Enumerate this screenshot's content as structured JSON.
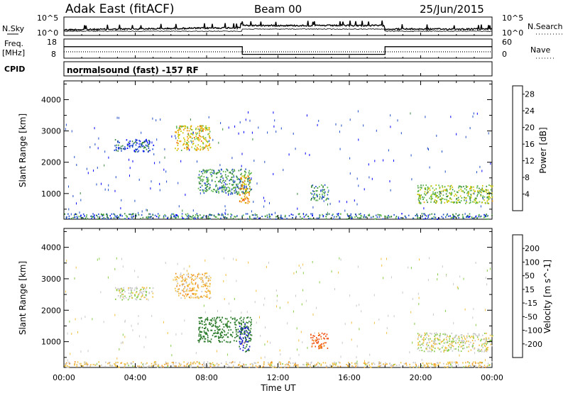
{
  "header": {
    "station": "Adak East (fitACF)",
    "beam": "Beam 00",
    "date": "25/Jun/2015"
  },
  "noise_panel": {
    "left_label": "N.Sky",
    "right_label": "N.Search",
    "left_ticks": [
      "10^5",
      "10^0"
    ],
    "right_ticks": [
      "10^5",
      "10^0"
    ]
  },
  "freq_panel": {
    "left_label": "Freq.",
    "left_unit": "[MHz]",
    "left_ticks": [
      "18",
      "8"
    ],
    "right_label": "Nave",
    "right_ticks": [
      "60",
      "0"
    ],
    "freq_steps": [
      {
        "start": 0,
        "end": 10,
        "level": 0.6
      },
      {
        "start": 10,
        "end": 18,
        "level": 0.2
      },
      {
        "start": 18,
        "end": 24,
        "level": 0.6
      }
    ]
  },
  "cpid_panel": {
    "label": "CPID",
    "text": "normalsound (fast) -157 RF"
  },
  "colors": {
    "power": [
      "#0000ff",
      "#1e4bc8",
      "#3a8a3c",
      "#5cb84a",
      "#c8c800",
      "#f2a000",
      "#f26000",
      "#e01010"
    ],
    "velocity": [
      "#1f1fd0",
      "#2a7a2a",
      "#44a844",
      "#88cc44",
      "#c8c8c8",
      "#f0c040",
      "#f09020",
      "#f05010",
      "#e01010"
    ]
  },
  "chart_data": [
    {
      "type": "heatmap",
      "title": "",
      "xlabel": "Time UT",
      "ylabel": "Slant Range [km]",
      "xlim": [
        0,
        24
      ],
      "ylim": [
        180,
        4600
      ],
      "x_ticks": [
        "00:00",
        "04:00",
        "08:00",
        "12:00",
        "16:00",
        "20:00",
        "00:00"
      ],
      "y_ticks": [
        "1000",
        "2000",
        "3000",
        "4000"
      ],
      "colorbar_label": "Power [dB]",
      "colorbar_ticks": [
        "4",
        "8",
        "12",
        "16",
        "20",
        "24",
        "28"
      ],
      "colorbar_range": [
        0,
        30
      ],
      "features": [
        {
          "name": "morning arc",
          "x_range": [
            2.8,
            5.0
          ],
          "range_km": [
            2350,
            2750
          ],
          "power": 6
        },
        {
          "name": "morning blob",
          "x_range": [
            6.2,
            8.2
          ],
          "range_km": [
            2400,
            3200
          ],
          "power": 18
        },
        {
          "name": "descending echo",
          "x_range": [
            7.5,
            10.5
          ],
          "range_km": [
            1000,
            1800
          ],
          "power": 10
        },
        {
          "name": "noon patch",
          "x_range": [
            9.8,
            10.4
          ],
          "range_km": [
            700,
            1600
          ],
          "power": 20
        },
        {
          "name": "afternoon patch",
          "x_range": [
            13.8,
            14.8
          ],
          "range_km": [
            800,
            1300
          ],
          "power": 10
        },
        {
          "name": "evening bands",
          "x_range": [
            19.8,
            24
          ],
          "range_km": [
            700,
            1300
          ],
          "power": 14
        },
        {
          "name": "near range",
          "x_range": [
            0,
            24
          ],
          "range_km": [
            180,
            380
          ],
          "power": 8
        }
      ]
    },
    {
      "type": "heatmap",
      "title": "",
      "xlabel": "Time UT",
      "ylabel": "Slant Range [km]",
      "xlim": [
        0,
        24
      ],
      "ylim": [
        180,
        4600
      ],
      "x_ticks": [
        "00:00",
        "04:00",
        "08:00",
        "12:00",
        "16:00",
        "20:00",
        "00:00"
      ],
      "y_ticks": [
        "1000",
        "2000",
        "3000",
        "4000"
      ],
      "colorbar_label": "Velocity [m s^-1]",
      "colorbar_ticks": [
        "200",
        "100",
        "50",
        "15",
        "-15",
        "-50",
        "-100",
        "-200"
      ],
      "colorbar_range": [
        -250,
        250
      ],
      "features": [
        {
          "name": "morning arc",
          "x_range": [
            2.8,
            5.0
          ],
          "range_km": [
            2350,
            2750
          ],
          "velocity": 0
        },
        {
          "name": "morning blob",
          "x_range": [
            6.2,
            8.2
          ],
          "range_km": [
            2400,
            3200
          ],
          "velocity": -40
        },
        {
          "name": "descending echo",
          "x_range": [
            7.5,
            10.5
          ],
          "range_km": [
            1000,
            1800
          ],
          "velocity": 150
        },
        {
          "name": "noon patch",
          "x_range": [
            9.8,
            10.4
          ],
          "range_km": [
            700,
            1600
          ],
          "velocity": 220
        },
        {
          "name": "afternoon patch",
          "x_range": [
            13.8,
            14.8
          ],
          "range_km": [
            800,
            1300
          ],
          "velocity": -120
        },
        {
          "name": "evening bands",
          "x_range": [
            19.8,
            24
          ],
          "range_km": [
            700,
            1300
          ],
          "velocity": 0
        },
        {
          "name": "near range",
          "x_range": [
            0,
            24
          ],
          "range_km": [
            180,
            380
          ],
          "velocity": -20
        }
      ]
    }
  ]
}
